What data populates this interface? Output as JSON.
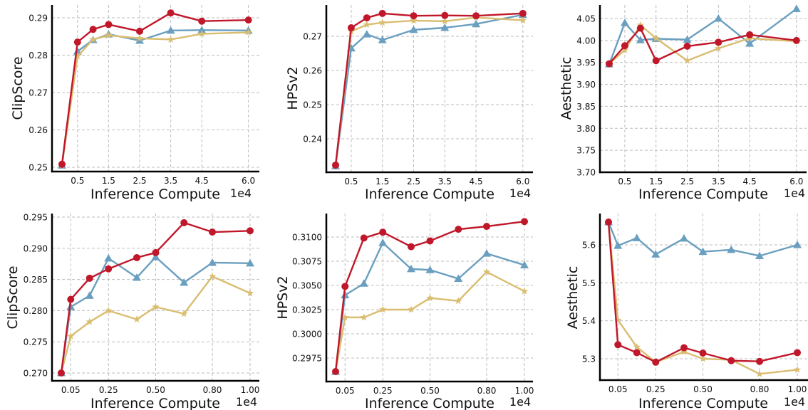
{
  "figure": {
    "series_colors": {
      "red": "#c0172a",
      "blue": "#6a9fbf",
      "yellow": "#d9bd70"
    }
  },
  "chart_data": [
    {
      "type": "line",
      "id": "top-left",
      "title": "",
      "xlabel": "Inference Compute",
      "x_offset_label": "1e4",
      "ylabel": "ClipScore",
      "grid": true,
      "xticks": [
        0.5,
        1.5,
        2.5,
        3.5,
        4.5,
        6.0
      ],
      "xtick_labels": [
        "0.5",
        "1.5",
        "2.5",
        "3.5",
        "4.5",
        "6.0"
      ],
      "yticks": [
        0.25,
        0.26,
        0.27,
        0.28,
        0.29
      ],
      "ytick_labels": [
        "0.25",
        "0.26",
        "0.27",
        "0.28",
        "0.29"
      ],
      "x": [
        0,
        0.5,
        1.0,
        1.5,
        2.5,
        3.5,
        4.5,
        6.0
      ],
      "series": [
        {
          "name": "blue",
          "marker": "triangle",
          "color": "#6a9fbf",
          "values": [
            0.2505,
            0.281,
            0.2841,
            0.2856,
            0.2839,
            0.2866,
            0.2867,
            0.2866
          ]
        },
        {
          "name": "yellow",
          "marker": "star",
          "color": "#d9bd70",
          "values": [
            0.2505,
            0.2797,
            0.2842,
            0.2853,
            0.2845,
            0.2842,
            0.2857,
            0.2861
          ]
        },
        {
          "name": "red",
          "marker": "circle",
          "color": "#c0172a",
          "values": [
            0.2508,
            0.2835,
            0.2869,
            0.2882,
            0.2864,
            0.2913,
            0.2891,
            0.2894
          ]
        }
      ]
    },
    {
      "type": "line",
      "id": "top-middle",
      "title": "",
      "xlabel": "Inference Compute",
      "x_offset_label": "1e4",
      "ylabel": "HPSv2",
      "grid": true,
      "xticks": [
        0.5,
        1.5,
        2.5,
        3.5,
        4.5,
        6.0
      ],
      "xtick_labels": [
        "0.5",
        "1.5",
        "2.5",
        "3.5",
        "4.5",
        "6.0"
      ],
      "yticks": [
        0.24,
        0.25,
        0.26,
        0.27
      ],
      "ytick_labels": [
        "0.24",
        "0.25",
        "0.26",
        "0.27"
      ],
      "x": [
        0,
        0.5,
        1.0,
        1.5,
        2.5,
        3.5,
        4.5,
        6.0
      ],
      "series": [
        {
          "name": "blue",
          "marker": "triangle",
          "color": "#6a9fbf",
          "values": [
            0.232,
            0.2665,
            0.2706,
            0.2689,
            0.2719,
            0.2725,
            0.2736,
            0.2763
          ]
        },
        {
          "name": "yellow",
          "marker": "star",
          "color": "#d9bd70",
          "values": [
            0.232,
            0.2714,
            0.2734,
            0.274,
            0.2746,
            0.2744,
            0.2755,
            0.2747
          ]
        },
        {
          "name": "red",
          "marker": "circle",
          "color": "#c0172a",
          "values": [
            0.2323,
            0.2725,
            0.2754,
            0.2767,
            0.276,
            0.2761,
            0.276,
            0.2767
          ]
        }
      ]
    },
    {
      "type": "line",
      "id": "top-right",
      "title": "",
      "xlabel": "Inference Compute",
      "x_offset_label": "1e4",
      "ylabel": "Aesthetic",
      "grid": true,
      "xticks": [
        0.5,
        1.5,
        2.5,
        3.5,
        4.5,
        6.0
      ],
      "xtick_labels": [
        "0.5",
        "1.5",
        "2.5",
        "3.5",
        "4.5",
        "6.0"
      ],
      "yticks": [
        3.7,
        3.75,
        3.8,
        3.85,
        3.9,
        3.95,
        4.0,
        4.05
      ],
      "ytick_labels": [
        "3.70",
        "3.75",
        "3.80",
        "3.85",
        "3.90",
        "3.95",
        "4.00",
        "4.05"
      ],
      "x": [
        0,
        0.5,
        1.0,
        1.5,
        2.5,
        3.5,
        4.5,
        6.0
      ],
      "series": [
        {
          "name": "blue",
          "marker": "triangle",
          "color": "#6a9fbf",
          "values": [
            3.946,
            4.04,
            4.001,
            4.004,
            4.002,
            4.05,
            3.993,
            4.072
          ]
        },
        {
          "name": "yellow",
          "marker": "star",
          "color": "#d9bd70",
          "values": [
            3.947,
            3.978,
            4.035,
            4.005,
            3.954,
            3.982,
            4.005,
            3.998
          ]
        },
        {
          "name": "red",
          "marker": "circle",
          "color": "#c0172a",
          "values": [
            3.947,
            3.988,
            4.028,
            3.954,
            3.987,
            3.996,
            4.013,
            4.0
          ]
        }
      ]
    },
    {
      "type": "line",
      "id": "bottom-left",
      "title": "",
      "xlabel": "Inference Compute",
      "x_offset_label": "1e4",
      "ylabel": "ClipScore",
      "grid": true,
      "xticks": [
        0.05,
        0.25,
        0.5,
        0.8,
        1.0
      ],
      "xtick_labels": [
        "0.05",
        "0.25",
        "0.50",
        "0.80",
        "1.00"
      ],
      "yticks": [
        0.27,
        0.275,
        0.28,
        0.285,
        0.29,
        0.295
      ],
      "ytick_labels": [
        "0.270",
        "0.275",
        "0.280",
        "0.285",
        "0.290",
        "0.295"
      ],
      "x": [
        0.0,
        0.05,
        0.15,
        0.25,
        0.4,
        0.5,
        0.65,
        0.8,
        1.0
      ],
      "series": [
        {
          "name": "blue",
          "marker": "triangle",
          "color": "#6a9fbf",
          "values": [
            0.27,
            0.2806,
            0.2824,
            0.2884,
            0.2853,
            0.2886,
            0.2845,
            0.2877,
            0.2876
          ]
        },
        {
          "name": "yellow",
          "marker": "star",
          "color": "#d9bd70",
          "values": [
            0.27,
            0.2759,
            0.2782,
            0.28,
            0.2786,
            0.2806,
            0.2795,
            0.2855,
            0.2828
          ]
        },
        {
          "name": "red",
          "marker": "circle",
          "color": "#c0172a",
          "values": [
            0.27,
            0.2818,
            0.2852,
            0.2867,
            0.2885,
            0.2893,
            0.2941,
            0.2926,
            0.2928
          ]
        }
      ]
    },
    {
      "type": "line",
      "id": "bottom-middle",
      "title": "",
      "xlabel": "Inference Compute",
      "x_offset_label": "1e4",
      "ylabel": "HPSv2",
      "grid": true,
      "xticks": [
        0.05,
        0.25,
        0.5,
        0.8,
        1.0
      ],
      "xtick_labels": [
        "0.05",
        "0.25",
        "0.50",
        "0.80",
        "1.00"
      ],
      "yticks": [
        0.2975,
        0.3,
        0.3025,
        0.305,
        0.3075,
        0.31
      ],
      "ytick_labels": [
        "0.2975",
        "0.3000",
        "0.3025",
        "0.3050",
        "0.3075",
        "0.3100"
      ],
      "x": [
        0.0,
        0.05,
        0.15,
        0.25,
        0.4,
        0.5,
        0.65,
        0.8,
        1.0
      ],
      "series": [
        {
          "name": "blue",
          "marker": "triangle",
          "color": "#6a9fbf",
          "values": [
            0.2961,
            0.304,
            0.3052,
            0.3094,
            0.3067,
            0.3066,
            0.3057,
            0.3083,
            0.3071
          ]
        },
        {
          "name": "yellow",
          "marker": "star",
          "color": "#d9bd70",
          "values": [
            0.2961,
            0.3017,
            0.3017,
            0.3025,
            0.3025,
            0.3037,
            0.3034,
            0.3064,
            0.3044
          ]
        },
        {
          "name": "red",
          "marker": "circle",
          "color": "#c0172a",
          "values": [
            0.2961,
            0.3049,
            0.3099,
            0.3105,
            0.309,
            0.3096,
            0.3108,
            0.3111,
            0.3116
          ]
        }
      ]
    },
    {
      "type": "line",
      "id": "bottom-right",
      "title": "",
      "xlabel": "Inference Compute",
      "x_offset_label": "1e4",
      "ylabel": "Aesthetic",
      "grid": true,
      "xticks": [
        0.05,
        0.25,
        0.5,
        0.8,
        1.0
      ],
      "xtick_labels": [
        "0.05",
        "0.25",
        "0.50",
        "0.80",
        "1.00"
      ],
      "yticks": [
        5.3,
        5.4,
        5.5,
        5.6
      ],
      "ytick_labels": [
        "5.3",
        "5.4",
        "5.5",
        "5.6"
      ],
      "x": [
        0.0,
        0.05,
        0.15,
        0.25,
        0.4,
        0.5,
        0.65,
        0.8,
        1.0
      ],
      "series": [
        {
          "name": "blue",
          "marker": "triangle",
          "color": "#6a9fbf",
          "values": [
            5.66,
            5.598,
            5.618,
            5.575,
            5.617,
            5.582,
            5.587,
            5.571,
            5.6
          ]
        },
        {
          "name": "yellow",
          "marker": "star",
          "color": "#d9bd70",
          "values": [
            5.66,
            5.402,
            5.331,
            5.291,
            5.318,
            5.3,
            5.297,
            5.26,
            5.271
          ]
        },
        {
          "name": "red",
          "marker": "circle",
          "color": "#c0172a",
          "values": [
            5.66,
            5.337,
            5.316,
            5.291,
            5.329,
            5.315,
            5.295,
            5.293,
            5.316
          ]
        }
      ]
    }
  ]
}
